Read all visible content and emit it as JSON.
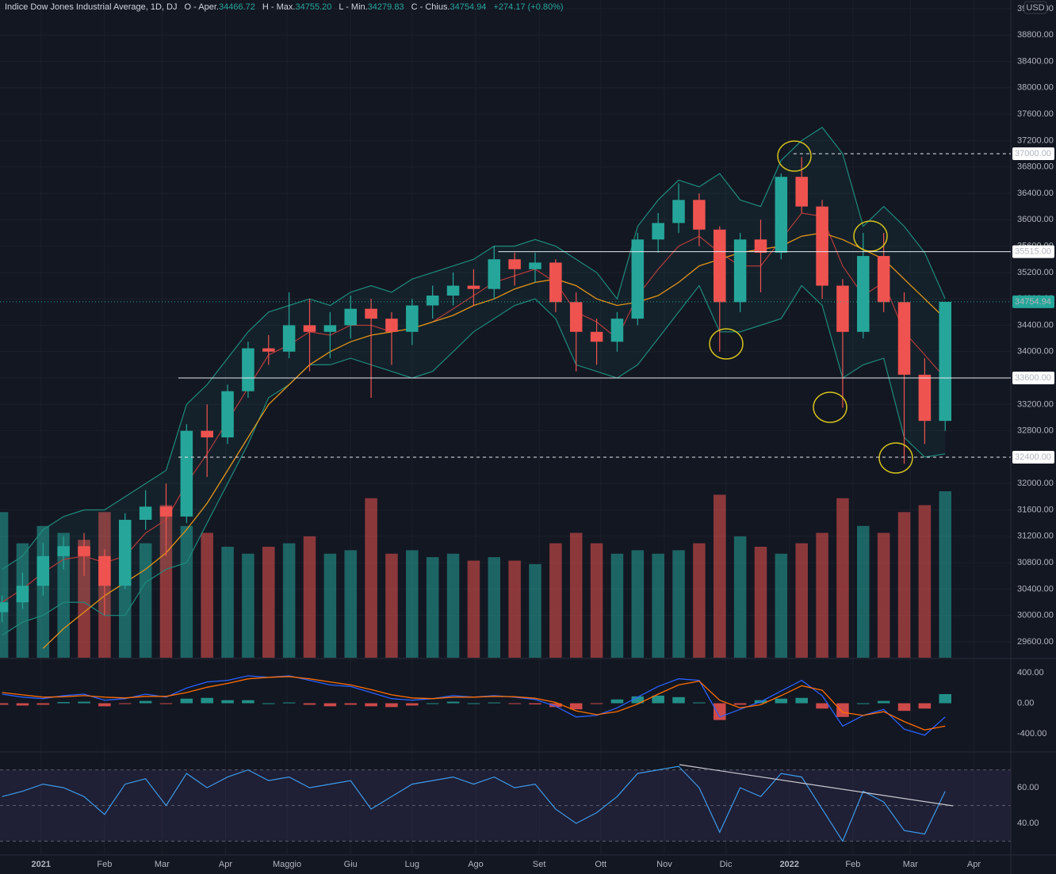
{
  "header": {
    "title": "Indice Dow Jones Industrial Average, 1D, DJ",
    "fields": [
      {
        "label": "O - Aper.",
        "value": "34466.72"
      },
      {
        "label": "H - Max.",
        "value": "34755.20"
      },
      {
        "label": "L - Min.",
        "value": "34279.83"
      },
      {
        "label": "C - Chius.",
        "value": "34754.94"
      }
    ],
    "change": "+274.17 (+0.80%)",
    "currency": "USD"
  },
  "chart_data": [
    {
      "type": "candlestick",
      "xlim": [
        -20,
        473
      ],
      "xticks": [
        {
          "value": 0,
          "label": "2021"
        },
        {
          "value": 31,
          "label": "Feb"
        },
        {
          "value": 59,
          "label": "Mar"
        },
        {
          "value": 90,
          "label": "Apr"
        },
        {
          "value": 120,
          "label": "Maggio"
        },
        {
          "value": 151,
          "label": "Giu"
        },
        {
          "value": 181,
          "label": "Lug"
        },
        {
          "value": 212,
          "label": "Ago"
        },
        {
          "value": 243,
          "label": "Set"
        },
        {
          "value": 273,
          "label": "Ott"
        },
        {
          "value": 304,
          "label": "Nov"
        },
        {
          "value": 334,
          "label": "Dic"
        },
        {
          "value": 365,
          "label": "2022"
        },
        {
          "value": 396,
          "label": "Feb"
        },
        {
          "value": 424,
          "label": "Mar"
        },
        {
          "value": 455,
          "label": "Apr"
        }
      ],
      "ylim": [
        29360,
        39235
      ],
      "yticks": [
        {
          "value": 29600,
          "label": "29600.00"
        },
        {
          "value": 30000,
          "label": "30000.00"
        },
        {
          "value": 30400,
          "label": "30400.00"
        },
        {
          "value": 30800,
          "label": "30800.00"
        },
        {
          "value": 31200,
          "label": "31200.00"
        },
        {
          "value": 31600,
          "label": "31600.00"
        },
        {
          "value": 32000,
          "label": "32000.00"
        },
        {
          "value": 32400,
          "label": "32400.00"
        },
        {
          "value": 32800,
          "label": "32800.00"
        },
        {
          "value": 33200,
          "label": "33200.00"
        },
        {
          "value": 33600,
          "label": "33600.00"
        },
        {
          "value": 34000,
          "label": "34000.00"
        },
        {
          "value": 34400,
          "label": "34400.00"
        },
        {
          "value": 34800,
          "label": "34800.00"
        },
        {
          "value": 35200,
          "label": "35200.00"
        },
        {
          "value": 35600,
          "label": "35600.00"
        },
        {
          "value": 36000,
          "label": "36000.00"
        },
        {
          "value": 36400,
          "label": "36400.00"
        },
        {
          "value": 36800,
          "label": "36800.00"
        },
        {
          "value": 37200,
          "label": "37200.00"
        },
        {
          "value": 37600,
          "label": "37600.00"
        },
        {
          "value": 38000,
          "label": "38000.00"
        },
        {
          "value": 38400,
          "label": "38400.00"
        },
        {
          "value": 38800,
          "label": "38800.00"
        },
        {
          "value": 39200,
          "label": "39200.00"
        }
      ],
      "grid": true,
      "up_color": "#26a69a",
      "down_color": "#ef5350",
      "x": [
        -19,
        -9,
        1,
        11,
        21,
        31,
        41,
        51,
        61,
        71,
        81,
        91,
        101,
        111,
        121,
        131,
        141,
        151,
        161,
        171,
        181,
        191,
        201,
        211,
        221,
        231,
        241,
        251,
        261,
        271,
        281,
        291,
        301,
        311,
        321,
        331,
        341,
        351,
        361,
        371,
        381,
        391,
        401,
        411,
        421,
        431,
        441
      ],
      "open": [
        30050,
        30200,
        30450,
        30900,
        31050,
        30900,
        30450,
        31450,
        31650,
        31500,
        32800,
        32700,
        33400,
        34050,
        34000,
        34400,
        34300,
        34400,
        34650,
        34500,
        34300,
        34700,
        34850,
        35000,
        34950,
        35400,
        35250,
        35350,
        34750,
        34300,
        34150,
        34500,
        35700,
        35950,
        36300,
        35850,
        34750,
        35700,
        35500,
        36650,
        36200,
        35000,
        34300,
        35450,
        34750,
        33650,
        32950
      ],
      "high": [
        30300,
        30650,
        31100,
        31200,
        31250,
        31000,
        31550,
        31900,
        32000,
        32900,
        33200,
        33500,
        34150,
        34250,
        34900,
        34800,
        34600,
        34850,
        34800,
        34600,
        34800,
        35000,
        35200,
        35250,
        35600,
        35500,
        35500,
        35400,
        34900,
        34500,
        34600,
        35800,
        36100,
        36550,
        36400,
        35900,
        35800,
        36000,
        36700,
        36950,
        36300,
        35100,
        35800,
        35800,
        34900,
        33900,
        34755.2
      ],
      "low": [
        29900,
        30100,
        30300,
        30700,
        30600,
        30000,
        30400,
        31300,
        30900,
        31400,
        32100,
        32600,
        33300,
        33800,
        33900,
        33700,
        33900,
        34200,
        33300,
        33800,
        34100,
        34500,
        34700,
        34700,
        34800,
        35000,
        35050,
        34600,
        33700,
        33800,
        34000,
        34400,
        35500,
        35800,
        35600,
        34000,
        34600,
        34900,
        35400,
        36100,
        34800,
        33150,
        34200,
        34600,
        32300,
        32600,
        32800
      ],
      "close": [
        30200,
        30450,
        30900,
        31050,
        30900,
        30450,
        31450,
        31650,
        31500,
        32800,
        32700,
        33400,
        34050,
        34000,
        34400,
        34300,
        34400,
        34650,
        34500,
        34300,
        34700,
        34850,
        35000,
        34950,
        35400,
        35250,
        35350,
        34750,
        34300,
        34150,
        34500,
        35700,
        35950,
        36300,
        35850,
        34750,
        35700,
        35500,
        36650,
        36200,
        35000,
        34300,
        35450,
        34750,
        33650,
        32950,
        34754.94
      ],
      "volume": [
        420,
        330,
        380,
        360,
        340,
        420,
        360,
        330,
        440,
        380,
        360,
        320,
        300,
        320,
        330,
        350,
        300,
        310,
        460,
        300,
        310,
        290,
        300,
        280,
        290,
        280,
        270,
        330,
        360,
        330,
        300,
        310,
        300,
        310,
        330,
        470,
        350,
        320,
        300,
        330,
        360,
        460,
        380,
        360,
        420,
        440,
        480
      ],
      "bb_upper": [
        30700,
        30900,
        31300,
        31500,
        31600,
        31600,
        31800,
        32000,
        32200,
        33200,
        33500,
        33900,
        34300,
        34600,
        34700,
        34800,
        34700,
        34900,
        35000,
        34900,
        35100,
        35200,
        35300,
        35400,
        35600,
        35600,
        35700,
        35600,
        35400,
        35200,
        34800,
        35900,
        36300,
        36600,
        36500,
        36700,
        36300,
        36200,
        36900,
        37200,
        37400,
        37000,
        35900,
        36200,
        35900,
        35500,
        34800
      ],
      "bb_lower": [
        29700,
        29900,
        30000,
        30200,
        30200,
        30000,
        30000,
        30500,
        30700,
        30800,
        31400,
        32000,
        32600,
        33300,
        33500,
        33800,
        33800,
        33900,
        33800,
        33700,
        33600,
        33700,
        34000,
        34300,
        34500,
        34700,
        34800,
        34500,
        33800,
        33700,
        33600,
        33800,
        34200,
        34600,
        35000,
        34300,
        34300,
        34400,
        34500,
        35000,
        34700,
        33600,
        33800,
        33900,
        32700,
        32400,
        32450
      ],
      "band_color": "#1f8a7c",
      "band_fill": "rgba(38,166,154,0.07)",
      "ma_fast": [
        30200,
        30400,
        30650,
        30850,
        30900,
        30800,
        30900,
        31250,
        31450,
        32000,
        32450,
        32950,
        33450,
        33950,
        34100,
        34300,
        34250,
        34400,
        34400,
        34300,
        34350,
        34450,
        34650,
        34850,
        35050,
        35150,
        35250,
        35050,
        34600,
        34450,
        34200,
        34850,
        35250,
        35600,
        35750,
        35500,
        35300,
        35300,
        35700,
        36100,
        36050,
        35300,
        34850,
        35050,
        34300,
        33950,
        33600
      ],
      "ma_fast_color": "#b23b3b",
      "ma_slow": [
        null,
        null,
        29500,
        29800,
        30050,
        30300,
        30500,
        30700,
        30950,
        31300,
        31700,
        32200,
        32700,
        33200,
        33500,
        33800,
        34000,
        34150,
        34250,
        34300,
        34350,
        34450,
        34550,
        34700,
        34800,
        34950,
        35050,
        35100,
        35000,
        34800,
        34700,
        34750,
        34850,
        35050,
        35300,
        35400,
        35500,
        35550,
        35600,
        35750,
        35800,
        35700,
        35550,
        35400,
        35100,
        34800,
        34500
      ],
      "ma_slow_color": "#e39419",
      "levels": [
        {
          "value": 37000,
          "label": "37000.00",
          "style": "dashed",
          "start": 367
        },
        {
          "value": 35515,
          "label": "35515.00",
          "style": "solid",
          "start": 223
        },
        {
          "value": 33600,
          "label": "33600.00",
          "style": "solid",
          "start": 67
        },
        {
          "value": 32400,
          "label": "32400.00",
          "style": "dashed",
          "start": 67
        }
      ]
    },
    {
      "type": "macd",
      "ylim": [
        -629,
        577
      ],
      "yticks": [
        {
          "value": 400,
          "label": "400.00"
        },
        {
          "value": 0,
          "label": "0.00"
        },
        {
          "value": -400,
          "label": "-400.00"
        }
      ],
      "series": [
        {
          "name": "MACD",
          "color": "#2962ff",
          "values": [
            120,
            80,
            60,
            100,
            120,
            40,
            60,
            120,
            80,
            200,
            280,
            300,
            360,
            340,
            360,
            300,
            240,
            220,
            140,
            60,
            40,
            60,
            100,
            80,
            100,
            80,
            50,
            -40,
            -180,
            -160,
            -60,
            80,
            220,
            320,
            300,
            -180,
            -80,
            20,
            160,
            300,
            100,
            -300,
            -160,
            -80,
            -340,
            -420,
            -180
          ]
        },
        {
          "name": "Signal",
          "color": "#ff6d00",
          "values": [
            140,
            110,
            80,
            85,
            100,
            80,
            70,
            90,
            90,
            140,
            210,
            260,
            320,
            340,
            350,
            320,
            280,
            240,
            180,
            110,
            70,
            60,
            80,
            80,
            90,
            85,
            65,
            10,
            -100,
            -150,
            -110,
            -10,
            120,
            240,
            290,
            40,
            -60,
            -20,
            100,
            230,
            170,
            -120,
            -160,
            -110,
            -240,
            -350,
            -300
          ]
        }
      ],
      "histogram": [
        -20,
        -30,
        -20,
        15,
        20,
        -40,
        -10,
        30,
        -10,
        60,
        70,
        40,
        40,
        0,
        10,
        -20,
        -40,
        -20,
        -40,
        -50,
        -30,
        0,
        20,
        0,
        10,
        -5,
        -15,
        -50,
        -80,
        -10,
        50,
        90,
        100,
        80,
        10,
        -220,
        -20,
        40,
        60,
        70,
        -70,
        -180,
        0,
        30,
        -100,
        -70,
        120
      ],
      "hist_up_color": "#26a69a",
      "hist_down_color": "#ef5350"
    },
    {
      "type": "line",
      "ylim": [
        22.7,
        79.6
      ],
      "yticks": [
        {
          "value": 60,
          "label": "60.00"
        },
        {
          "value": 40,
          "label": "40.00"
        }
      ],
      "bands": [
        70,
        50,
        30
      ],
      "band_fill": "rgba(126,87,194,0.12)",
      "series": [
        {
          "name": "RSI",
          "color": "#3d9be9",
          "values": [
            55,
            58,
            62,
            60,
            55,
            45,
            62,
            65,
            50,
            68,
            60,
            66,
            70,
            64,
            66,
            60,
            62,
            64,
            48,
            55,
            62,
            64,
            66,
            62,
            66,
            60,
            62,
            48,
            40,
            46,
            55,
            68,
            70,
            72,
            60,
            35,
            60,
            55,
            68,
            66,
            48,
            30,
            58,
            52,
            36,
            34,
            58
          ]
        }
      ]
    }
  ]
}
